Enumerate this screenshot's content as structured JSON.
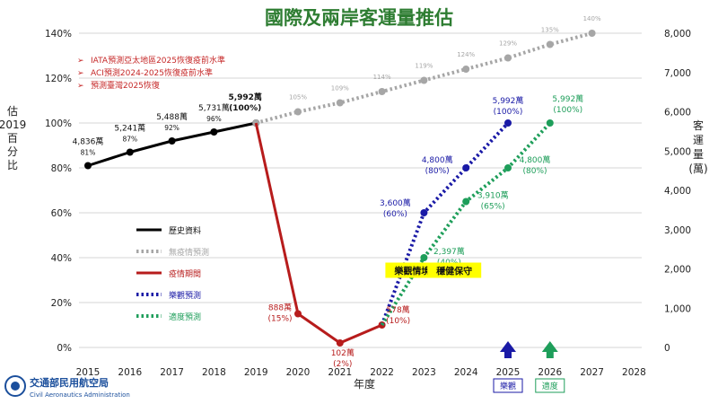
{
  "chart_data": {
    "type": "line",
    "title": "國際及兩岸客運量推估",
    "ylabel_left": "估 2019 百分比",
    "ylabel_left_lines": [
      "估",
      "2019",
      "百",
      "分",
      "比"
    ],
    "ylabel_right": "客運量(萬)",
    "ylabel_right_lines": [
      "客",
      "運",
      "量",
      "(萬)"
    ],
    "xlabel": "年度",
    "x_categories": [
      "2015",
      "2016",
      "2017",
      "2018",
      "2019",
      "2020",
      "2021",
      "2022",
      "2023",
      "2024",
      "2025",
      "2026",
      "2027",
      "2028"
    ],
    "ylim_left": [
      0,
      140
    ],
    "ylim_right": [
      0,
      8000
    ],
    "left_ticks": [
      "0%",
      "20%",
      "40%",
      "60%",
      "80%",
      "100%",
      "120%",
      "140%"
    ],
    "right_ticks": [
      "0",
      "1,000",
      "2,000",
      "3,000",
      "4,000",
      "5,000",
      "6,000",
      "7,000",
      "8,000"
    ],
    "grid": true,
    "notes": [
      "IATA預測亞太地區2025恢復疫前水準",
      "ACI預測2024-2025恢復疫前水準",
      "預測臺灣2025恢復"
    ],
    "series": [
      {
        "name": "歷史資料",
        "color": "#000000",
        "style": "solid",
        "points": [
          {
            "x": 2015,
            "y": 81,
            "label": "4,836萬",
            "sub": "81%"
          },
          {
            "x": 2016,
            "y": 87,
            "label": "5,241萬",
            "sub": "87%"
          },
          {
            "x": 2017,
            "y": 92,
            "label": "5,488萬",
            "sub": "92%"
          },
          {
            "x": 2018,
            "y": 96,
            "label": "5,731萬",
            "sub": "96%"
          },
          {
            "x": 2019,
            "y": 100,
            "label": "5,992萬",
            "sub": "(100%)"
          }
        ]
      },
      {
        "name": "無疫情預測",
        "color": "#a6a6a6",
        "style": "dotted",
        "points": [
          {
            "x": 2019,
            "y": 100,
            "label": "",
            "sub": ""
          },
          {
            "x": 2020,
            "y": 105,
            "label": "",
            "sub": "105%"
          },
          {
            "x": 2021,
            "y": 109,
            "label": "",
            "sub": "109%"
          },
          {
            "x": 2022,
            "y": 114,
            "label": "",
            "sub": "114%"
          },
          {
            "x": 2023,
            "y": 119,
            "label": "",
            "sub": "119%"
          },
          {
            "x": 2024,
            "y": 124,
            "label": "",
            "sub": "124%"
          },
          {
            "x": 2025,
            "y": 129,
            "label": "",
            "sub": "129%"
          },
          {
            "x": 2026,
            "y": 135,
            "label": "",
            "sub": "135%"
          },
          {
            "x": 2027,
            "y": 140,
            "label": "",
            "sub": "140%"
          }
        ]
      },
      {
        "name": "疫情期間",
        "color": "#b71c1c",
        "style": "solid",
        "points": [
          {
            "x": 2019,
            "y": 100,
            "label": "",
            "sub": ""
          },
          {
            "x": 2020,
            "y": 15,
            "label": "888萬",
            "sub": "(15%)"
          },
          {
            "x": 2021,
            "y": 2,
            "label": "102萬",
            "sub": "(2%)"
          },
          {
            "x": 2022,
            "y": 10,
            "label": "578萬",
            "sub": "(10%)"
          }
        ]
      },
      {
        "name": "樂觀預測",
        "color": "#1a1aa6",
        "style": "dotted",
        "points": [
          {
            "x": 2022,
            "y": 10,
            "label": "",
            "sub": ""
          },
          {
            "x": 2023,
            "y": 60,
            "label": "3,600萬",
            "sub": "(60%)"
          },
          {
            "x": 2024,
            "y": 80,
            "label": "4,800萬",
            "sub": "(80%)"
          },
          {
            "x": 2025,
            "y": 100,
            "label": "5,992萬",
            "sub": "(100%)"
          }
        ]
      },
      {
        "name": "適度預測",
        "color": "#1e9e5a",
        "style": "dotted",
        "points": [
          {
            "x": 2022,
            "y": 10,
            "label": "",
            "sub": ""
          },
          {
            "x": 2023,
            "y": 40,
            "label": "2,397萬",
            "sub": "(40%)"
          },
          {
            "x": 2024,
            "y": 65,
            "label": "3,910萬",
            "sub": "(65%)"
          },
          {
            "x": 2025,
            "y": 80,
            "label": "4,800萬",
            "sub": "(80%)"
          },
          {
            "x": 2026,
            "y": 100,
            "label": "5,992萬",
            "sub": "(100%)"
          }
        ]
      }
    ],
    "scenario_labels": [
      {
        "text": "樂觀情境",
        "year": 2023,
        "y": 35
      },
      {
        "text": "穩健保守",
        "year": 2024,
        "y": 35
      }
    ],
    "arrows": [
      {
        "year": 2025,
        "label": "樂觀",
        "color": "#1a1aa6"
      },
      {
        "year": 2026,
        "label": "適度",
        "color": "#1e9e5a"
      }
    ]
  },
  "logo": {
    "name": "交通部民用航空局",
    "english": "Civil Aeronautics Administration"
  },
  "colors": {
    "title": "#2e7d32",
    "notes": "#c62828",
    "highlight": "#ffff00"
  }
}
